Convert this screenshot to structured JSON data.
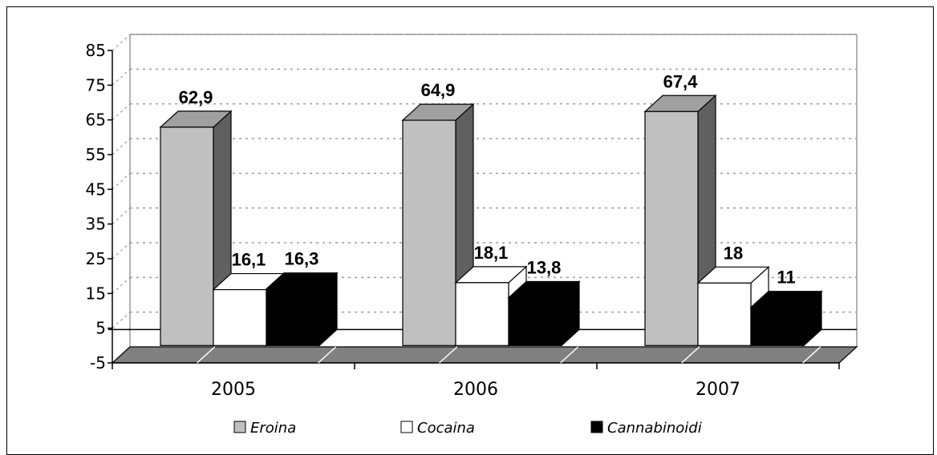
{
  "chart_data": {
    "type": "bar",
    "categories": [
      "2005",
      "2006",
      "2007"
    ],
    "series": [
      {
        "name": "Eroina",
        "values": [
          62.9,
          64.9,
          67.4
        ],
        "labels": [
          "62,9",
          "64,9",
          "67,4"
        ]
      },
      {
        "name": "Cocaina",
        "values": [
          16.1,
          18.1,
          18
        ],
        "labels": [
          "16,1",
          "18,1",
          "18"
        ]
      },
      {
        "name": "Cannabinoidi",
        "values": [
          16.3,
          13.8,
          11
        ],
        "labels": [
          "16,3",
          "13,8",
          "11"
        ]
      }
    ],
    "ylim": [
      -5,
      85
    ],
    "yticks": [
      "85",
      "75",
      "65",
      "55",
      "45",
      "35",
      "25",
      "15",
      "5",
      "-5"
    ],
    "grid": true,
    "legend_position": "bottom",
    "style": "3d-column",
    "colors": {
      "series": [
        "#c0c0c0",
        "#ffffff",
        "#000000"
      ],
      "series_side": [
        "#606060",
        "#ffffff",
        "#000000"
      ],
      "floor": "#808080",
      "grid": "#9a9a9a"
    }
  }
}
